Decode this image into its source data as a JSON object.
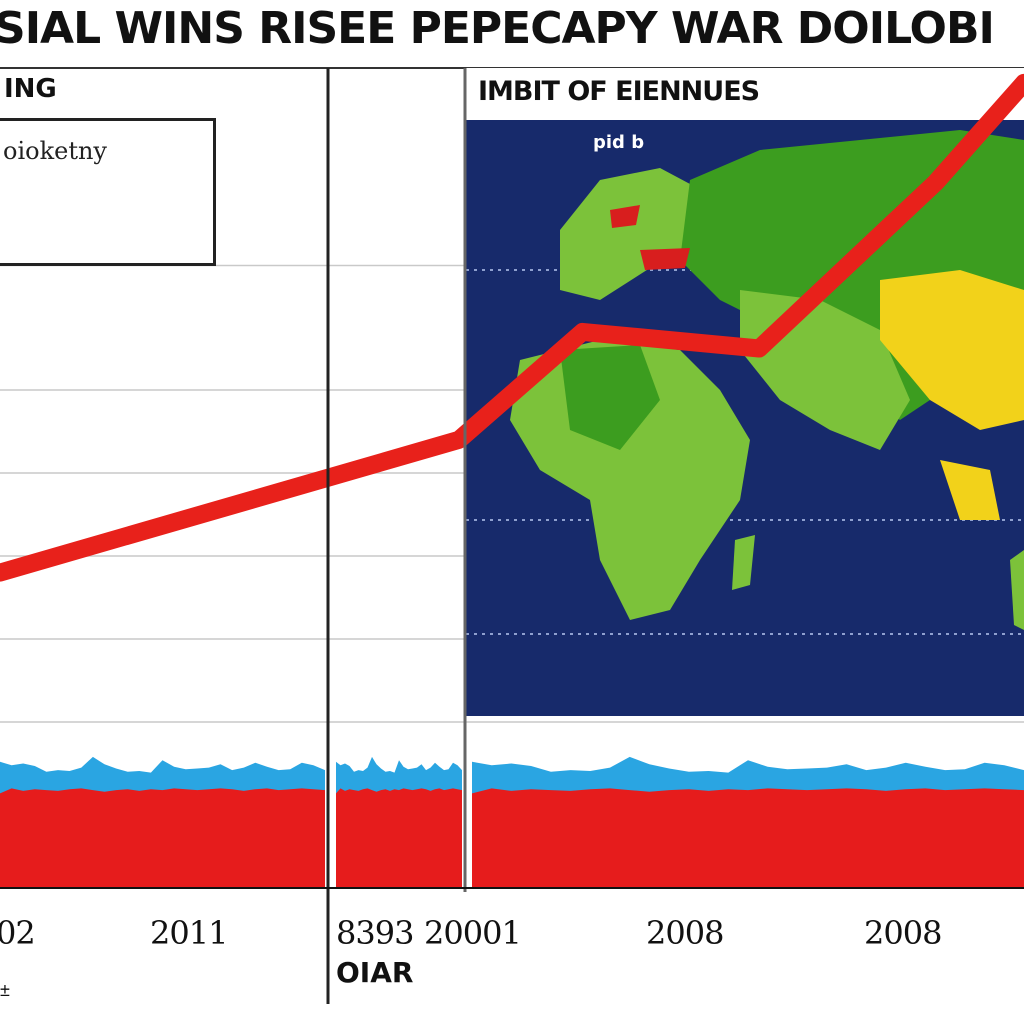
{
  "title": "SIAL WINS RISEE PEPECAPY WAR DOILOBI",
  "left_panel": {
    "label": "ING",
    "legend_text": "oioketny"
  },
  "map_panel": {
    "label": "IMBIT OF EIENNUES",
    "sublabel": "pid b",
    "colors": {
      "ocean": "#172a6b",
      "land": "#7cc23a",
      "land_dark": "#3c9d1f",
      "highlight": "#f2d21a",
      "hotspot": "#d81e1e"
    }
  },
  "x_axis_label": "OIAR",
  "corner_mark": "±",
  "chart_data": {
    "type": "line",
    "title": "SIAL WINS RISEE PEPECAPY WAR DOILOBI",
    "xlabel": "OIAR",
    "ylabel": "",
    "tick_labels": [
      "02",
      "2011",
      "8393",
      "20001",
      "2008",
      "2008"
    ],
    "series": [
      {
        "values": [
          38,
          54,
          67,
          65,
          85,
          97
        ]
      }
    ],
    "series_x": [
      0,
      26,
      33,
      43,
      53,
      58
    ],
    "area_series": [
      {
        "color": "#2aa5e2",
        "values": [
          15.2,
          14.8,
          15.0,
          14.7,
          14.0,
          14.2,
          14.1,
          14.5,
          15.8,
          14.9,
          14.4,
          14.0,
          14.1,
          13.9,
          15.4,
          14.6,
          14.3,
          14.4,
          14.5,
          14.9,
          14.2,
          14.5,
          15.1,
          14.6,
          14.2,
          14.3,
          15.1,
          14.8,
          14.2
        ]
      },
      {
        "color": "#e61c1c",
        "values": [
          11.4,
          12.0,
          11.7,
          11.9,
          11.8,
          11.7,
          11.9,
          12.0,
          11.8,
          11.6,
          11.8,
          11.9,
          11.7,
          11.9,
          11.8,
          12.0,
          11.9,
          11.8,
          11.9,
          12.0,
          11.9,
          11.7,
          11.9,
          12.0,
          11.8,
          11.9,
          12.0,
          11.9,
          11.8
        ]
      }
    ],
    "ylim": [
      0,
      100
    ],
    "grid": true,
    "legend": "top-left"
  }
}
